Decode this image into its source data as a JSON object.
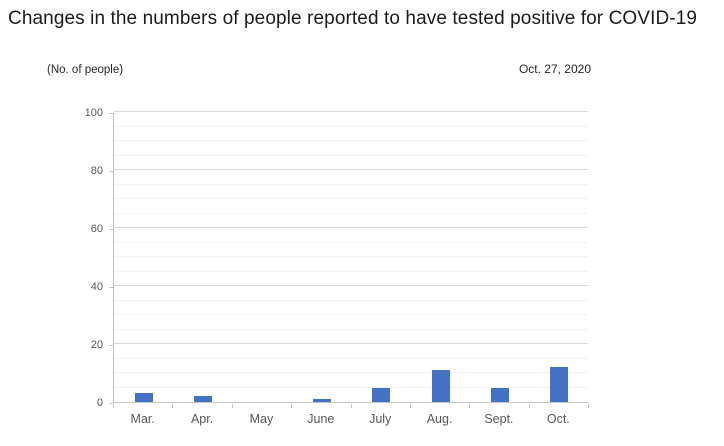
{
  "header": {
    "title": "Changes in the numbers of people reported to have tested positive for COVID-19",
    "unit_label": "(No. of people)",
    "date_label": "Oct. 27, 2020"
  },
  "chart_data": {
    "type": "bar",
    "title": "Changes in the numbers of people reported to have tested positive for COVID-19",
    "annotation": "Oct. 27, 2020",
    "categories": [
      "Mar.",
      "Apr.",
      "May",
      "June",
      "July",
      "Aug.",
      "Sept.",
      "Oct."
    ],
    "values": [
      3,
      2,
      0,
      1,
      5,
      11,
      5,
      12
    ],
    "xlabel": "",
    "ylabel": "(No. of people)",
    "ylim": [
      0,
      100
    ],
    "ytick_step": 20,
    "minor_grid_step": 5,
    "yticks": [
      0,
      20,
      40,
      60,
      80,
      100
    ],
    "grid": "on",
    "legend": "none",
    "bar_color": "#4472C4"
  },
  "colors": {
    "bar": "#4472C4",
    "axis_line": "#c4c4c4",
    "grid_major": "#d9d9d9",
    "grid_minor": "#f2f2f2",
    "tick_label": "#595959",
    "title_text": "#1c1c1c"
  }
}
